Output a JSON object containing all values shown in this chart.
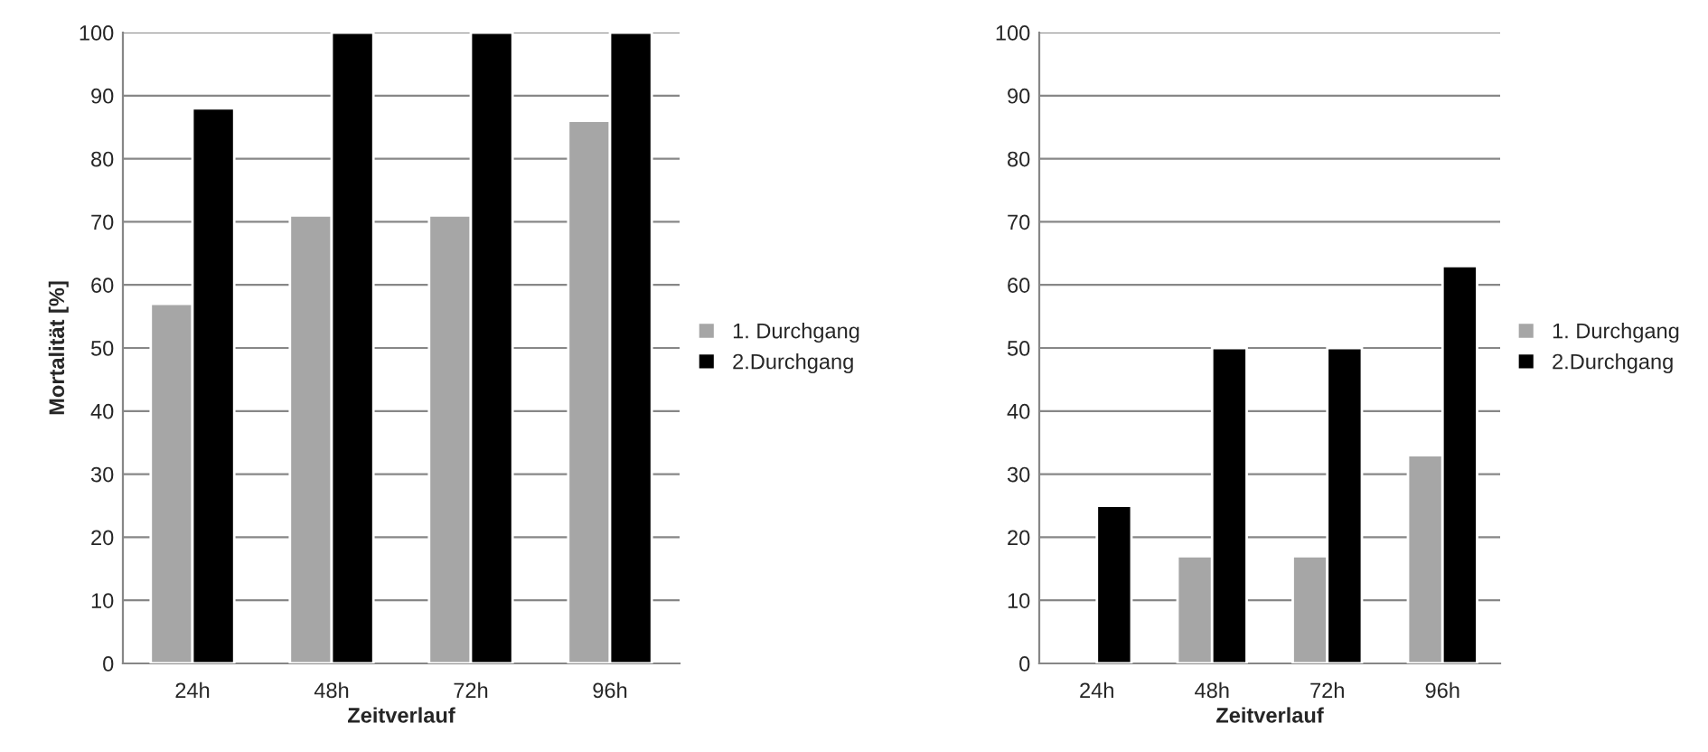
{
  "chart_data": [
    {
      "type": "bar",
      "categories": [
        "24h",
        "48h",
        "72h",
        "96h"
      ],
      "xlabel": "Zeitverlauf",
      "ylabel": "Mortalität [%]",
      "ylim": [
        0,
        100
      ],
      "yticks": [
        0,
        10,
        20,
        30,
        40,
        50,
        60,
        70,
        80,
        90,
        100
      ],
      "grid": "y",
      "legend": "right",
      "series": [
        {
          "name": "1. Durchgang",
          "color": "#a6a6a6",
          "values": [
            57,
            71,
            71,
            86
          ]
        },
        {
          "name": "2.Durchgang",
          "color": "#000000",
          "values": [
            88,
            100,
            100,
            100
          ]
        }
      ]
    },
    {
      "type": "bar",
      "categories": [
        "24h",
        "48h",
        "72h",
        "96h"
      ],
      "xlabel": "Zeitverlauf",
      "ylim": [
        0,
        100
      ],
      "yticks": [
        0,
        10,
        20,
        30,
        40,
        50,
        60,
        70,
        80,
        90,
        100
      ],
      "grid": "y",
      "legend": "right",
      "series": [
        {
          "name": "1. Durchgang",
          "color": "#a6a6a6",
          "values": [
            null,
            17,
            17,
            33
          ]
        },
        {
          "name": "2.Durchgang",
          "color": "#000000",
          "values": [
            25,
            50,
            50,
            63
          ]
        }
      ]
    }
  ]
}
